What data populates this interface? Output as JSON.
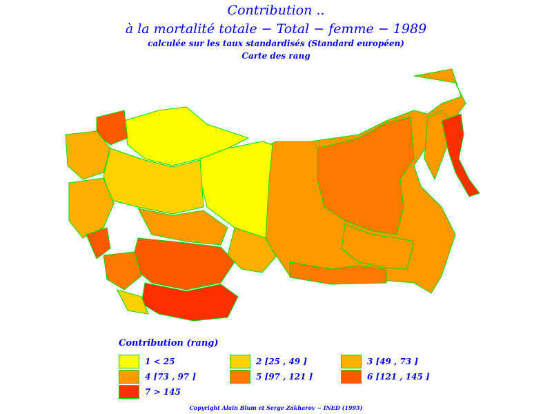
{
  "titles": {
    "line1": "Contribution ..",
    "line2": "à la mortalité totale  −  Total  −  femme  −  1989",
    "line3": "calculée sur les taux standardisés (Standard européen)",
    "line4": "Carte des rang"
  },
  "legend": {
    "title": "Contribution  (rang)",
    "items": [
      {
        "label": "1  <  25",
        "color": "#ffff00"
      },
      {
        "label": "2  [25  ,  49  ]",
        "color": "#ffd200"
      },
      {
        "label": "3  [49  ,  73  ]",
        "color": "#ffb000"
      },
      {
        "label": "4  [73  ,  97  ]",
        "color": "#ff9a00"
      },
      {
        "label": "5  [97  ,  121  ]",
        "color": "#ff7a00"
      },
      {
        "label": "6  [121  ,  145  ]",
        "color": "#ff5a00"
      },
      {
        "label": "7  >  145",
        "color": "#ff3000"
      }
    ]
  },
  "colors": {
    "text": "#0000ee",
    "border": "#00dd00"
  },
  "copyright": "Copyright  Alain  Blum  et  Serge  Zakharov  −  INED  (1995)"
}
